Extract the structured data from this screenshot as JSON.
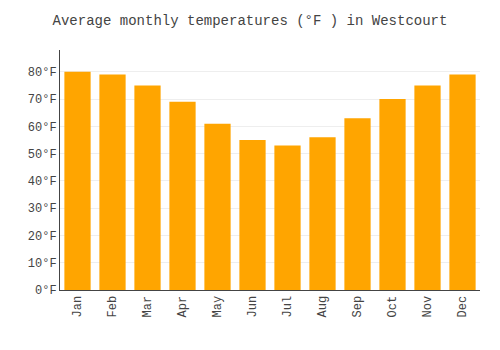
{
  "chart_data": {
    "type": "bar",
    "title": "Average monthly temperatures (°F ) in Westcourt",
    "categories": [
      "Jan",
      "Feb",
      "Mar",
      "Apr",
      "May",
      "Jun",
      "Jul",
      "Aug",
      "Sep",
      "Oct",
      "Nov",
      "Dec"
    ],
    "values": [
      80,
      79,
      75,
      69,
      61,
      55,
      53,
      56,
      63,
      70,
      75,
      79
    ],
    "color": "#FFA500",
    "ylim": [
      0,
      88
    ],
    "yticks": [
      {
        "value": 0,
        "label": "0°F"
      },
      {
        "value": 10,
        "label": "10°F"
      },
      {
        "value": 20,
        "label": "20°F"
      },
      {
        "value": 30,
        "label": "30°F"
      },
      {
        "value": 40,
        "label": "40°F"
      },
      {
        "value": 50,
        "label": "50°F"
      },
      {
        "value": 60,
        "label": "60°F"
      },
      {
        "value": 70,
        "label": "70°F"
      },
      {
        "value": 80,
        "label": "80°F"
      }
    ],
    "grid": true
  }
}
